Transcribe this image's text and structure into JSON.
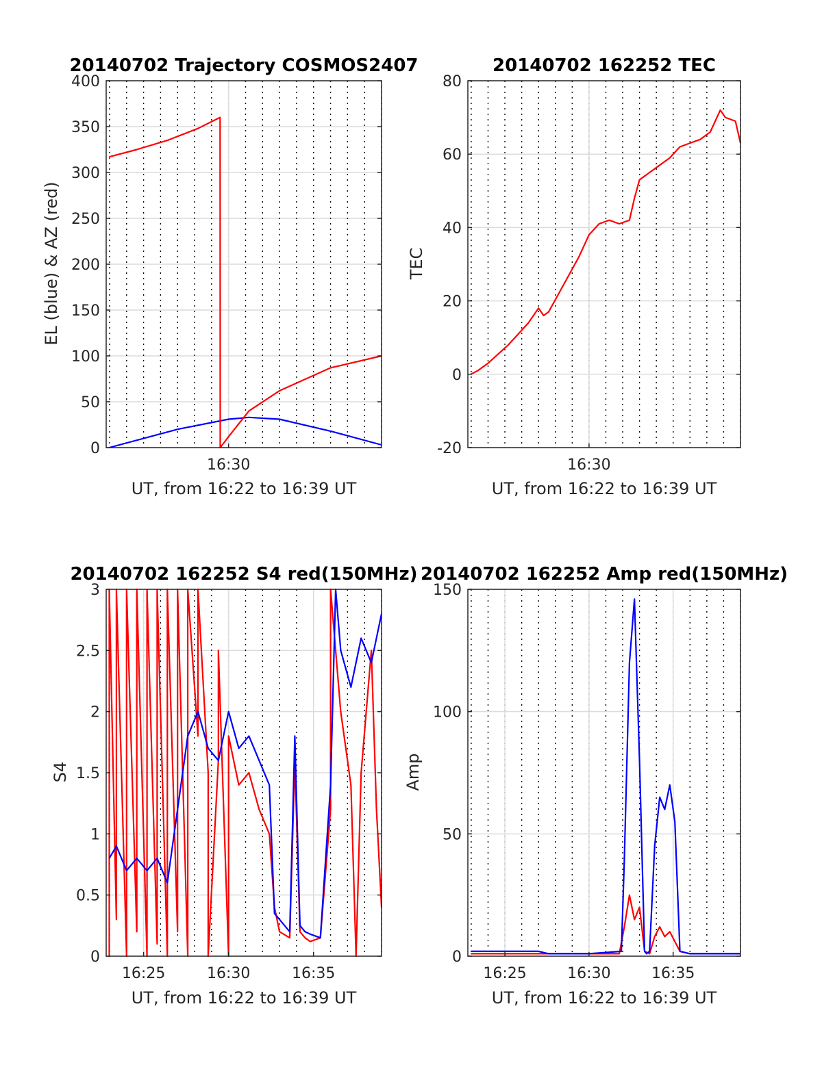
{
  "figure": {
    "background": "#ffffff"
  },
  "chart_data": [
    {
      "id": "trajectory",
      "type": "line",
      "title": "20140702 Trajectory COSMOS2407",
      "xlabel": "UT, from 16:22 to 16:39 UT",
      "ylabel": "EL (blue) & AZ (red)",
      "xlim": [
        16.38,
        16.65
      ],
      "ylim": [
        0,
        400
      ],
      "yticks": [
        0,
        50,
        100,
        150,
        200,
        250,
        300,
        350,
        400
      ],
      "xtick_labels": [
        {
          "x": 16.5,
          "label": "16:30"
        }
      ],
      "minor_dotted_every_min": true,
      "grid": true,
      "series": [
        {
          "color": "#0000ff",
          "x": [
            16.383,
            16.45,
            16.5,
            16.52,
            16.55,
            16.6,
            16.65
          ],
          "y": [
            0,
            20,
            31,
            33,
            31,
            18,
            3
          ]
        },
        {
          "color": "#ff0000",
          "x": [
            16.383,
            16.41,
            16.44,
            16.47,
            16.4916,
            16.4917,
            16.4918,
            16.5,
            16.52,
            16.55,
            16.6,
            16.65
          ],
          "y": [
            317,
            325,
            335,
            348,
            360,
            360,
            0,
            12,
            40,
            62,
            87,
            100
          ]
        }
      ]
    },
    {
      "id": "tec",
      "type": "line",
      "title": "20140702 162252 TEC",
      "xlabel": "UT, from 16:22 to 16:39 UT",
      "ylabel": "TEC",
      "xlim": [
        16.38,
        16.65
      ],
      "ylim": [
        -20,
        80
      ],
      "yticks": [
        -20,
        0,
        20,
        40,
        60,
        80
      ],
      "xtick_labels": [
        {
          "x": 16.5,
          "label": "16:30"
        }
      ],
      "minor_dotted_every_min": true,
      "grid": true,
      "series": [
        {
          "color": "#ff0000",
          "x": [
            16.383,
            16.39,
            16.4,
            16.42,
            16.44,
            16.45,
            16.455,
            16.46,
            16.47,
            16.48,
            16.49,
            16.5,
            16.51,
            16.52,
            16.53,
            16.54,
            16.545,
            16.55,
            16.56,
            16.57,
            16.58,
            16.59,
            16.6,
            16.61,
            16.62,
            16.63,
            16.635,
            16.645,
            16.65
          ],
          "y": [
            0,
            1,
            3,
            8,
            14,
            18,
            16,
            17,
            22,
            27,
            32,
            38,
            41,
            42,
            41,
            42,
            48,
            53,
            55,
            57,
            59,
            62,
            63,
            64,
            66,
            72,
            70,
            69,
            63
          ]
        }
      ]
    },
    {
      "id": "s4",
      "type": "line",
      "title": "20140702 162252 S4 red(150MHz)",
      "xlabel": "UT, from 16:22 to 16:39 UT",
      "ylabel": "S4",
      "xlim": [
        16.38,
        16.65
      ],
      "ylim": [
        0,
        3
      ],
      "yticks": [
        0,
        0.5,
        1,
        1.5,
        2,
        2.5,
        3
      ],
      "xtick_labels": [
        {
          "x": 16.4167,
          "label": "16:25"
        },
        {
          "x": 16.5,
          "label": "16:30"
        },
        {
          "x": 16.5833,
          "label": "16:35"
        }
      ],
      "minor_dotted_every_min": true,
      "grid": true,
      "series": [
        {
          "color": "#ff0000",
          "x": [
            16.383,
            16.383,
            16.39,
            16.39,
            16.4,
            16.4,
            16.41,
            16.41,
            16.42,
            16.42,
            16.43,
            16.43,
            16.44,
            16.44,
            16.45,
            16.45,
            16.46,
            16.46,
            16.47,
            16.47,
            16.48,
            16.48,
            16.49,
            16.49,
            16.5,
            16.5,
            16.51,
            16.52,
            16.53,
            16.54,
            16.545,
            16.55,
            16.56,
            16.565,
            16.57,
            16.575,
            16.58,
            16.59,
            16.6,
            16.6,
            16.61,
            16.62,
            16.625,
            16.63,
            16.64,
            16.645,
            16.65
          ],
          "y": [
            0,
            3,
            0.3,
            3,
            0,
            3,
            0.2,
            3,
            0,
            3,
            0.1,
            3,
            0,
            3,
            0.2,
            3,
            0,
            3,
            1.8,
            3,
            1.5,
            0,
            1.6,
            2.5,
            0,
            1.8,
            1.4,
            1.5,
            1.2,
            1.0,
            0.4,
            0.2,
            0.15,
            1.6,
            0.2,
            0.15,
            0.12,
            0.15,
            1.2,
            3,
            2.0,
            1.4,
            0,
            1.5,
            2.5,
            1.2,
            0.4
          ]
        },
        {
          "color": "#0000ff",
          "x": [
            16.383,
            16.39,
            16.4,
            16.41,
            16.42,
            16.43,
            16.44,
            16.45,
            16.46,
            16.47,
            16.48,
            16.49,
            16.5,
            16.51,
            16.52,
            16.53,
            16.54,
            16.545,
            16.55,
            16.56,
            16.565,
            16.57,
            16.575,
            16.58,
            16.59,
            16.6,
            16.605,
            16.61,
            16.62,
            16.63,
            16.64,
            16.65
          ],
          "y": [
            0.8,
            0.9,
            0.7,
            0.8,
            0.7,
            0.8,
            0.6,
            1.2,
            1.8,
            2.0,
            1.7,
            1.6,
            2.0,
            1.7,
            1.8,
            1.6,
            1.4,
            0.35,
            0.3,
            0.2,
            1.8,
            0.25,
            0.2,
            0.18,
            0.15,
            1.4,
            3,
            2.5,
            2.2,
            2.6,
            2.4,
            2.8
          ]
        }
      ]
    },
    {
      "id": "amp",
      "type": "line",
      "title": "20140702 162252 Amp red(150MHz)",
      "xlabel": "UT, from 16:22 to 16:39 UT",
      "ylabel": "Amp",
      "xlim": [
        16.38,
        16.65
      ],
      "ylim": [
        0,
        150
      ],
      "yticks": [
        0,
        50,
        100,
        150
      ],
      "xtick_labels": [
        {
          "x": 16.4167,
          "label": "16:25"
        },
        {
          "x": 16.5,
          "label": "16:30"
        },
        {
          "x": 16.5833,
          "label": "16:35"
        }
      ],
      "minor_dotted_every_min": true,
      "grid": true,
      "series": [
        {
          "color": "#ff0000",
          "x": [
            16.383,
            16.5,
            16.53,
            16.535,
            16.54,
            16.545,
            16.55,
            16.555,
            16.56,
            16.565,
            16.57,
            16.575,
            16.58,
            16.585,
            16.59,
            16.6,
            16.65
          ],
          "y": [
            1,
            1,
            1,
            12,
            25,
            15,
            20,
            2,
            1,
            8,
            12,
            8,
            10,
            6,
            2,
            1,
            1
          ]
        },
        {
          "color": "#0000ff",
          "x": [
            16.383,
            16.45,
            16.46,
            16.5,
            16.532,
            16.535,
            16.54,
            16.545,
            16.55,
            16.555,
            16.557,
            16.56,
            16.565,
            16.57,
            16.575,
            16.58,
            16.585,
            16.59,
            16.6,
            16.65
          ],
          "y": [
            2,
            2,
            1,
            1,
            2,
            40,
            120,
            146,
            80,
            2,
            1,
            2,
            45,
            65,
            60,
            70,
            55,
            2,
            1,
            1
          ]
        }
      ]
    }
  ]
}
